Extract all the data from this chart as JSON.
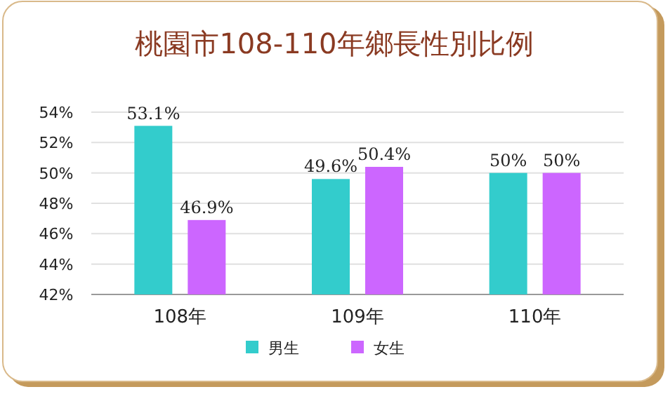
{
  "chart_data": {
    "type": "bar",
    "title": "桃園市108-110年鄉長性別比例",
    "categories": [
      "108年",
      "109年",
      "110年"
    ],
    "series": [
      {
        "name": "男生",
        "color": "#33cccc",
        "values": [
          53.1,
          49.6,
          50
        ],
        "value_labels": [
          "53.1%",
          "49.6%",
          "50%"
        ]
      },
      {
        "name": "女生",
        "color": "#cc66ff",
        "values": [
          46.9,
          50.4,
          50
        ],
        "value_labels": [
          "46.9%",
          "50.4%",
          "50%"
        ]
      }
    ],
    "ylim": [
      42,
      54
    ],
    "yticks": [
      {
        "value": 42,
        "label": "42%"
      },
      {
        "value": 44,
        "label": "44%"
      },
      {
        "value": 46,
        "label": "46%"
      },
      {
        "value": 48,
        "label": "48%"
      },
      {
        "value": 50,
        "label": "50%"
      },
      {
        "value": 52,
        "label": "52%"
      },
      {
        "value": 54,
        "label": "54%"
      }
    ],
    "grid": "y",
    "legend": "bottom"
  }
}
